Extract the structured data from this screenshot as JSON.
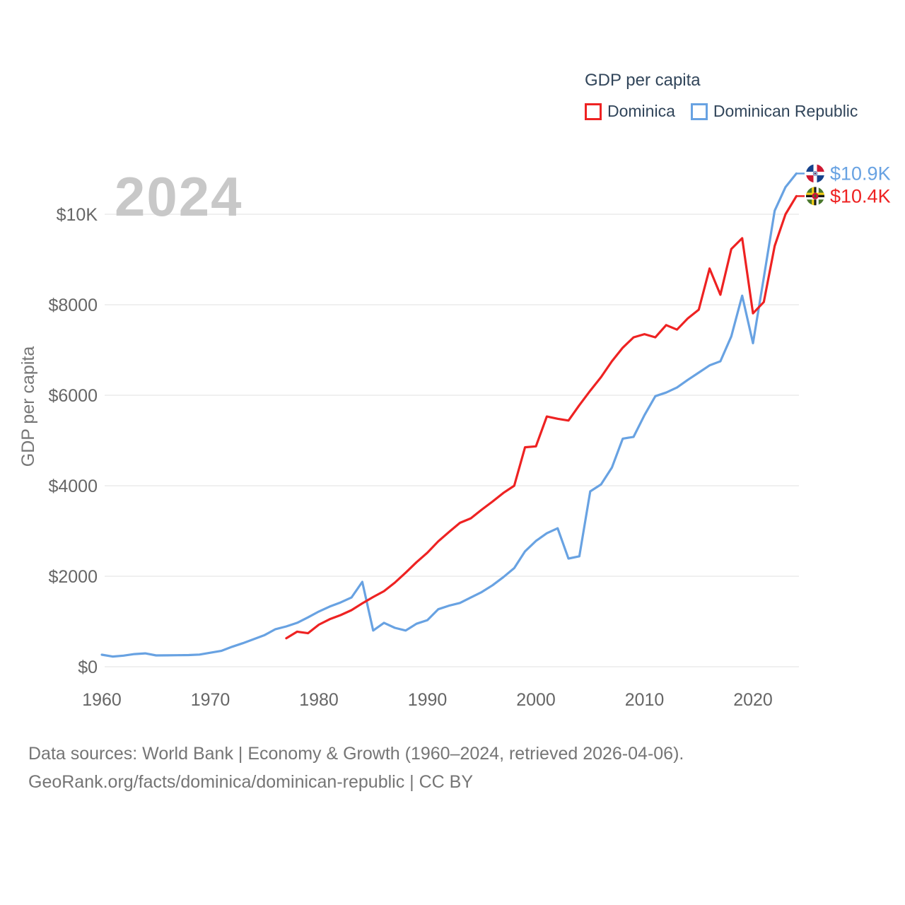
{
  "watermark": "2024",
  "legend": {
    "title": "GDP per capita",
    "items": [
      {
        "label": "Dominica",
        "color": "#ee2222"
      },
      {
        "label": "Dominican Republic",
        "color": "#68a2e2"
      }
    ]
  },
  "axes": {
    "y_title": "GDP per capita",
    "y_ticks": [
      {
        "value": 0,
        "label": "$0"
      },
      {
        "value": 2000,
        "label": "$2000"
      },
      {
        "value": 4000,
        "label": "$4000"
      },
      {
        "value": 6000,
        "label": "$6000"
      },
      {
        "value": 8000,
        "label": "$8000"
      },
      {
        "value": 10000,
        "label": "$10K"
      }
    ],
    "x_ticks": [
      1960,
      1970,
      1980,
      1990,
      2000,
      2010,
      2020
    ]
  },
  "chart_data": {
    "type": "line",
    "title": "GDP per capita",
    "xlabel": "",
    "ylabel": "GDP per capita",
    "xlim": [
      1959,
      2025
    ],
    "ylim": [
      0,
      11000
    ],
    "grid": true,
    "legend_position": "top-right",
    "series": [
      {
        "name": "Dominica",
        "color": "#ee2222",
        "flag": "dominica",
        "start_year": 1977,
        "end_label": "$10.4K",
        "values": [
          630,
          775,
          740,
          930,
          1050,
          1140,
          1250,
          1400,
          1540,
          1670,
          1860,
          2080,
          2310,
          2520,
          2770,
          2980,
          3180,
          3280,
          3470,
          3650,
          3840,
          4000,
          4850,
          4870,
          5530,
          5480,
          5440,
          5780,
          6100,
          6400,
          6750,
          7050,
          7280,
          7350,
          7280,
          7550,
          7450,
          7700,
          7890,
          8800,
          8220,
          9230,
          9470,
          7810,
          8060,
          9300,
          10000,
          10400
        ]
      },
      {
        "name": "Dominican Republic",
        "color": "#68a2e2",
        "flag": "dominican-republic",
        "start_year": 1960,
        "end_label": "$10.9K",
        "values": [
          265,
          225,
          245,
          280,
          295,
          250,
          252,
          255,
          258,
          268,
          310,
          350,
          440,
          520,
          610,
          700,
          830,
          890,
          970,
          1090,
          1220,
          1330,
          1420,
          1530,
          1875,
          800,
          970,
          860,
          800,
          950,
          1030,
          1270,
          1350,
          1410,
          1530,
          1650,
          1800,
          1980,
          2180,
          2550,
          2780,
          2950,
          3060,
          2390,
          2440,
          3875,
          4030,
          4400,
          5040,
          5080,
          5560,
          5980,
          6060,
          6170,
          6340,
          6500,
          6660,
          6750,
          7300,
          8200,
          7150,
          8600,
          10080,
          10600,
          10900
        ]
      }
    ]
  },
  "footer": {
    "line1": "Data sources: World Bank | Economy & Growth (1960–2024, retrieved 2026-04-06).",
    "line2": "GeoRank.org/facts/dominica/dominican-republic | CC BY"
  }
}
